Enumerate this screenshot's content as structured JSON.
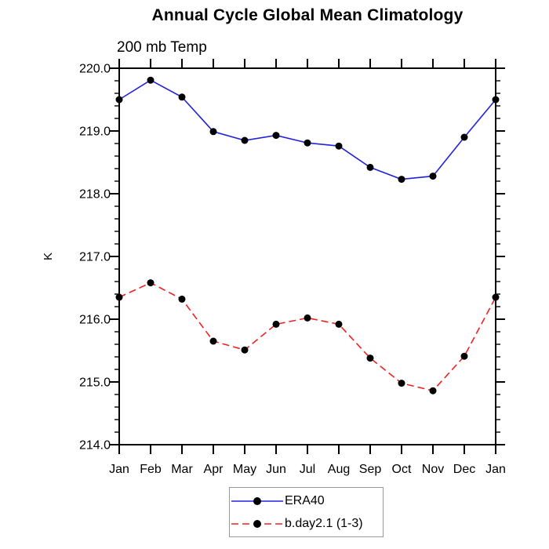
{
  "chart_data": {
    "type": "line",
    "title": "Annual Cycle Global Mean Climatology",
    "subtitle": "200 mb Temp",
    "xlabel": "",
    "ylabel": "K",
    "categories": [
      "Jan",
      "Feb",
      "Mar",
      "Apr",
      "May",
      "Jun",
      "Jul",
      "Aug",
      "Sep",
      "Oct",
      "Nov",
      "Dec",
      "Jan"
    ],
    "ylim": [
      214.0,
      220.0
    ],
    "ytick_step": 1.0,
    "ytick_minor_step": 0.2,
    "ytick_labels": [
      "214.0",
      "215.0",
      "216.0",
      "217.0",
      "218.0",
      "219.0",
      "220.0"
    ],
    "grid": false,
    "legend_position": "bottom-center",
    "series": [
      {
        "name": "ERA40",
        "color": "#2222dd",
        "line_style": "solid",
        "marker": "filled-circle",
        "marker_color": "#000000",
        "values": [
          219.5,
          219.81,
          219.54,
          218.99,
          218.85,
          218.93,
          218.81,
          218.76,
          218.42,
          218.23,
          218.28,
          218.9,
          219.5
        ]
      },
      {
        "name": "b.day2.1 (1-3)",
        "color": "#ee2222",
        "line_style": "dashed",
        "marker": "filled-circle",
        "marker_color": "#000000",
        "values": [
          216.35,
          216.58,
          216.32,
          215.65,
          215.51,
          215.92,
          216.02,
          215.92,
          215.38,
          214.98,
          214.86,
          215.41,
          216.35
        ]
      }
    ],
    "axis_color": "#000000",
    "legend_border_color": "#999999"
  }
}
